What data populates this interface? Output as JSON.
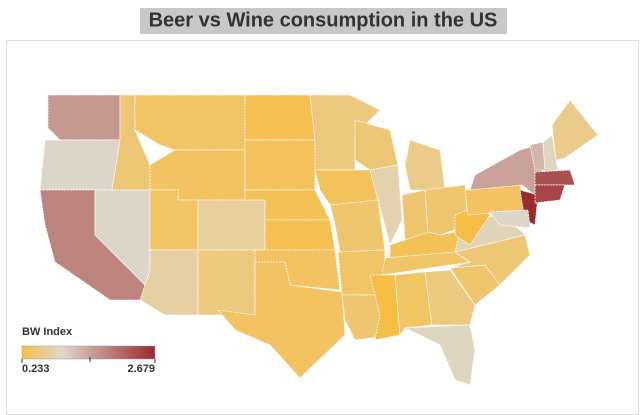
{
  "map": {
    "title": "Beer vs Wine consumption in the US",
    "legend_title": "BW Index",
    "scale": {
      "min": 0.233,
      "max": 2.679
    },
    "colors": [
      "#f7be45",
      "#ddd8cc",
      "#9b2a2e"
    ],
    "values": [
      1.6,
      1.0,
      1.8,
      1.0,
      0.5,
      0.4,
      0.38,
      0.4,
      0.7,
      0.75,
      0.55,
      0.3,
      0.35,
      0.33,
      0.3,
      0.38,
      0.38,
      0.55,
      0.35,
      0.45,
      0.4,
      0.45,
      0.5,
      0.8,
      0.6,
      0.45,
      0.45,
      0.33,
      0.42,
      0.24,
      0.4,
      0.55,
      0.9,
      0.45,
      0.5,
      0.85,
      0.233,
      0.38,
      1.5,
      2.679,
      0.95,
      1.3,
      0.9,
      0.6,
      2.3,
      2.4
    ]
  }
}
